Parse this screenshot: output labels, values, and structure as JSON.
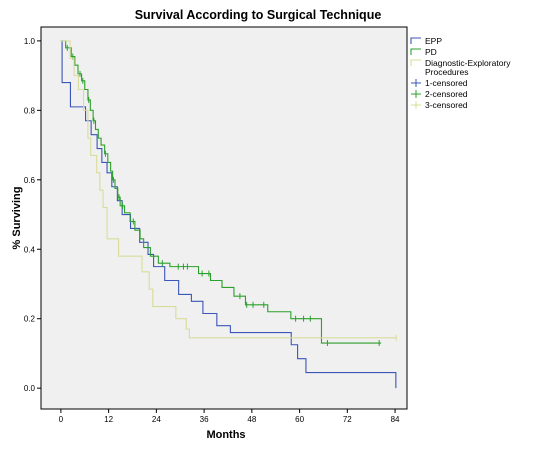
{
  "chart_data": {
    "type": "line",
    "title": "Survival According to Surgical Technique",
    "xlabel": "Months",
    "ylabel": "% Surviving",
    "xlim": [
      -5,
      87
    ],
    "ylim": [
      -0.06,
      1.04
    ],
    "xticks": [
      0,
      12,
      24,
      36,
      48,
      60,
      72,
      84
    ],
    "yticks": [
      0.0,
      0.2,
      0.4,
      0.6,
      0.8,
      1.0
    ],
    "xtick_labels": [
      "0",
      "12",
      "24",
      "36",
      "48",
      "60",
      "72",
      "84"
    ],
    "ytick_labels": [
      "0.0",
      "0.2",
      "0.4",
      "0.6",
      "0.8",
      "1.0"
    ],
    "grid": false,
    "legend_position": "right",
    "legend": [
      {
        "label": "EPP",
        "kind": "line",
        "color": "#3b55b8"
      },
      {
        "label": "PD",
        "kind": "line",
        "color": "#2ca02c"
      },
      {
        "label": "Diagnostic-Exploratory Procedures",
        "kind": "line",
        "color": "#d8dc9a"
      },
      {
        "label": "1-censored",
        "kind": "censor",
        "color": "#3b55b8"
      },
      {
        "label": "2-censored",
        "kind": "censor",
        "color": "#2ca02c"
      },
      {
        "label": "3-censored",
        "kind": "censor",
        "color": "#d8dc9a"
      }
    ],
    "series": [
      {
        "name": "EPP",
        "color": "#3b55b8",
        "steps": [
          [
            0,
            1.0
          ],
          [
            0.3,
            0.88
          ],
          [
            2.4,
            0.81
          ],
          [
            6.2,
            0.77
          ],
          [
            7.6,
            0.73
          ],
          [
            9.1,
            0.69
          ],
          [
            10.3,
            0.65
          ],
          [
            11.6,
            0.62
          ],
          [
            12.8,
            0.58
          ],
          [
            14.2,
            0.54
          ],
          [
            15.4,
            0.5
          ],
          [
            17.5,
            0.46
          ],
          [
            19.8,
            0.42
          ],
          [
            21.9,
            0.385
          ],
          [
            23.3,
            0.35
          ],
          [
            26.1,
            0.31
          ],
          [
            29.6,
            0.27
          ],
          [
            32.8,
            0.25
          ],
          [
            35.7,
            0.215
          ],
          [
            39.2,
            0.18
          ],
          [
            42.6,
            0.16
          ],
          [
            57.9,
            0.125
          ],
          [
            59.5,
            0.085
          ],
          [
            61.6,
            0.045
          ],
          [
            84,
            0.045
          ],
          [
            84.2,
            0.0
          ]
        ],
        "end_x": 84.2,
        "censored": []
      },
      {
        "name": "PD",
        "color": "#2ca02c",
        "steps": [
          [
            0,
            1.0
          ],
          [
            1.2,
            0.98
          ],
          [
            2.6,
            0.955
          ],
          [
            3.5,
            0.93
          ],
          [
            4.3,
            0.905
          ],
          [
            5.2,
            0.885
          ],
          [
            6.0,
            0.86
          ],
          [
            6.8,
            0.83
          ],
          [
            7.4,
            0.8
          ],
          [
            8.1,
            0.77
          ],
          [
            8.7,
            0.745
          ],
          [
            9.4,
            0.72
          ],
          [
            10.1,
            0.7
          ],
          [
            11.0,
            0.675
          ],
          [
            11.8,
            0.65
          ],
          [
            12.5,
            0.625
          ],
          [
            13.0,
            0.6
          ],
          [
            13.6,
            0.575
          ],
          [
            14.3,
            0.55
          ],
          [
            14.9,
            0.525
          ],
          [
            16.0,
            0.505
          ],
          [
            17.4,
            0.48
          ],
          [
            18.6,
            0.455
          ],
          [
            19.9,
            0.43
          ],
          [
            20.8,
            0.405
          ],
          [
            22.5,
            0.38
          ],
          [
            24.5,
            0.36
          ],
          [
            27.4,
            0.35
          ],
          [
            30.2,
            0.35
          ],
          [
            34.6,
            0.33
          ],
          [
            37.6,
            0.31
          ],
          [
            40.5,
            0.29
          ],
          [
            43.5,
            0.265
          ],
          [
            46.4,
            0.24
          ],
          [
            52.0,
            0.22
          ],
          [
            57.8,
            0.2
          ],
          [
            60.8,
            0.2
          ],
          [
            65.5,
            0.13
          ],
          [
            80.5,
            0.13
          ]
        ],
        "end_x": 80.5,
        "censored": [
          [
            1.6,
            0.98
          ],
          [
            3.0,
            0.955
          ],
          [
            4.8,
            0.905
          ],
          [
            5.5,
            0.885
          ],
          [
            7.0,
            0.83
          ],
          [
            8.3,
            0.77
          ],
          [
            11.2,
            0.675
          ],
          [
            13.2,
            0.6
          ],
          [
            14.6,
            0.55
          ],
          [
            15.5,
            0.525
          ],
          [
            18.2,
            0.48
          ],
          [
            25.5,
            0.36
          ],
          [
            29.5,
            0.35
          ],
          [
            30.8,
            0.35
          ],
          [
            31.8,
            0.35
          ],
          [
            35.5,
            0.33
          ],
          [
            37.2,
            0.33
          ],
          [
            45.0,
            0.265
          ],
          [
            46.7,
            0.24
          ],
          [
            48.3,
            0.24
          ],
          [
            51.0,
            0.24
          ],
          [
            59.0,
            0.2
          ],
          [
            61.0,
            0.2
          ],
          [
            62.7,
            0.2
          ],
          [
            67.0,
            0.13
          ],
          [
            80.0,
            0.13
          ]
        ]
      },
      {
        "name": "Diagnostic-Exploratory Procedures",
        "color": "#d8dc9a",
        "steps": [
          [
            0,
            1.0
          ],
          [
            2.3,
            0.95
          ],
          [
            3.3,
            0.9
          ],
          [
            4.4,
            0.86
          ],
          [
            5.7,
            0.8
          ],
          [
            6.8,
            0.72
          ],
          [
            7.5,
            0.67
          ],
          [
            9.0,
            0.62
          ],
          [
            9.8,
            0.57
          ],
          [
            10.6,
            0.52
          ],
          [
            11.6,
            0.43
          ],
          [
            14.5,
            0.38
          ],
          [
            20.4,
            0.335
          ],
          [
            22.2,
            0.285
          ],
          [
            23.1,
            0.235
          ],
          [
            28.9,
            0.2
          ],
          [
            31.5,
            0.17
          ],
          [
            32.3,
            0.145
          ],
          [
            48.9,
            0.145
          ],
          [
            84.3,
            0.145
          ]
        ],
        "end_x": 84.3,
        "censored": [
          [
            84.3,
            0.145
          ]
        ]
      }
    ]
  }
}
